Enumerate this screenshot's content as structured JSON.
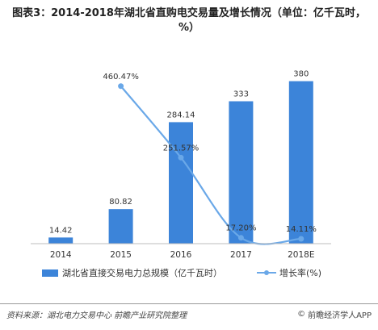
{
  "chart_data": {
    "type": "bar",
    "title": "图表3：2014-2018年湖北省直购电交易量及增长情况（单位：亿千瓦时，%）",
    "categories": [
      "2014",
      "2015",
      "2016",
      "2017",
      "2018E"
    ],
    "series": [
      {
        "name": "湖北省直接交易电力总规模（亿千瓦时）",
        "type": "bar",
        "color": "#3c84d9",
        "values": [
          14.42,
          80.82,
          284.14,
          333,
          380
        ],
        "value_labels": [
          "14.42",
          "80.82",
          "284.14",
          "333",
          "380"
        ]
      },
      {
        "name": "增长率(%)",
        "type": "line",
        "color": "#6aa8e8",
        "values": [
          null,
          460.47,
          251.57,
          17.2,
          14.11
        ],
        "value_labels": [
          "",
          "460.47%",
          "251.57%",
          "17.20%",
          "14.11%"
        ]
      }
    ],
    "ylim": [
      0,
      400
    ],
    "y2lim": [
      0,
      500
    ],
    "grid": false,
    "legend_position": "bottom"
  },
  "footer": {
    "source": "资料来源：湖北电力交易中心 前瞻产业研究院整理",
    "copyright_symbol": "©",
    "brand": "前瞻经济学人APP"
  }
}
